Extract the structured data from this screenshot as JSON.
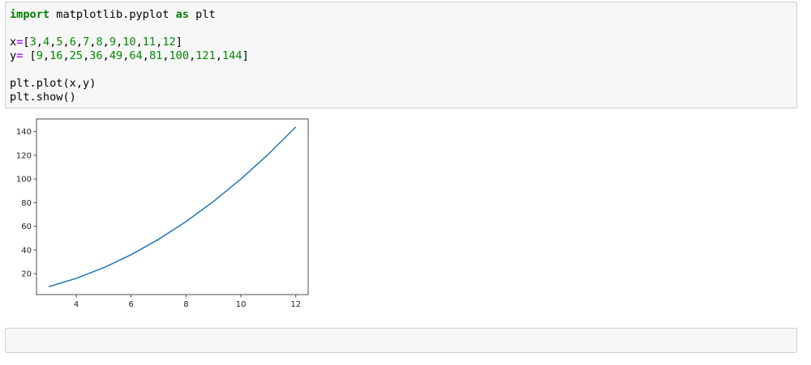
{
  "code_cell": {
    "lines": [
      [
        {
          "t": "import",
          "c": "kw"
        },
        {
          "t": " matplotlib.pyplot ",
          "c": ""
        },
        {
          "t": "as",
          "c": "kw"
        },
        {
          "t": " plt",
          "c": ""
        }
      ],
      [],
      [
        {
          "t": "x",
          "c": ""
        },
        {
          "t": "=",
          "c": "op"
        },
        {
          "t": "[",
          "c": ""
        },
        {
          "t": "3",
          "c": "num"
        },
        {
          "t": ",",
          "c": ""
        },
        {
          "t": "4",
          "c": "num"
        },
        {
          "t": ",",
          "c": ""
        },
        {
          "t": "5",
          "c": "num"
        },
        {
          "t": ",",
          "c": ""
        },
        {
          "t": "6",
          "c": "num"
        },
        {
          "t": ",",
          "c": ""
        },
        {
          "t": "7",
          "c": "num"
        },
        {
          "t": ",",
          "c": ""
        },
        {
          "t": "8",
          "c": "num"
        },
        {
          "t": ",",
          "c": ""
        },
        {
          "t": "9",
          "c": "num"
        },
        {
          "t": ",",
          "c": ""
        },
        {
          "t": "10",
          "c": "num"
        },
        {
          "t": ",",
          "c": ""
        },
        {
          "t": "11",
          "c": "num"
        },
        {
          "t": ",",
          "c": ""
        },
        {
          "t": "12",
          "c": "num"
        },
        {
          "t": "]",
          "c": ""
        }
      ],
      [
        {
          "t": "y",
          "c": ""
        },
        {
          "t": "=",
          "c": "op"
        },
        {
          "t": " [",
          "c": ""
        },
        {
          "t": "9",
          "c": "num"
        },
        {
          "t": ",",
          "c": ""
        },
        {
          "t": "16",
          "c": "num"
        },
        {
          "t": ",",
          "c": ""
        },
        {
          "t": "25",
          "c": "num"
        },
        {
          "t": ",",
          "c": ""
        },
        {
          "t": "36",
          "c": "num"
        },
        {
          "t": ",",
          "c": ""
        },
        {
          "t": "49",
          "c": "num"
        },
        {
          "t": ",",
          "c": ""
        },
        {
          "t": "64",
          "c": "num"
        },
        {
          "t": ",",
          "c": ""
        },
        {
          "t": "81",
          "c": "num"
        },
        {
          "t": ",",
          "c": ""
        },
        {
          "t": "100",
          "c": "num"
        },
        {
          "t": ",",
          "c": ""
        },
        {
          "t": "121",
          "c": "num"
        },
        {
          "t": ",",
          "c": ""
        },
        {
          "t": "144",
          "c": "num"
        },
        {
          "t": "]",
          "c": ""
        }
      ],
      [],
      [
        {
          "t": "plt.plot(x,y)",
          "c": ""
        }
      ],
      [
        {
          "t": "plt.show()",
          "c": ""
        }
      ]
    ]
  },
  "empty_cell": {
    "content": ""
  },
  "chart_data": {
    "type": "line",
    "x": [
      3,
      4,
      5,
      6,
      7,
      8,
      9,
      10,
      11,
      12
    ],
    "series": [
      {
        "values": [
          9,
          16,
          25,
          36,
          49,
          64,
          81,
          100,
          121,
          144
        ],
        "color": "#1f77b4"
      }
    ],
    "xlim": [
      2.55,
      12.45
    ],
    "ylim": [
      2.25,
      150.75
    ],
    "xticks": [
      "4",
      "6",
      "8",
      "10",
      "12"
    ],
    "yticks": [
      "20",
      "40",
      "60",
      "80",
      "100",
      "120",
      "140"
    ],
    "grid": false,
    "title": "",
    "xlabel": "",
    "ylabel": ""
  }
}
